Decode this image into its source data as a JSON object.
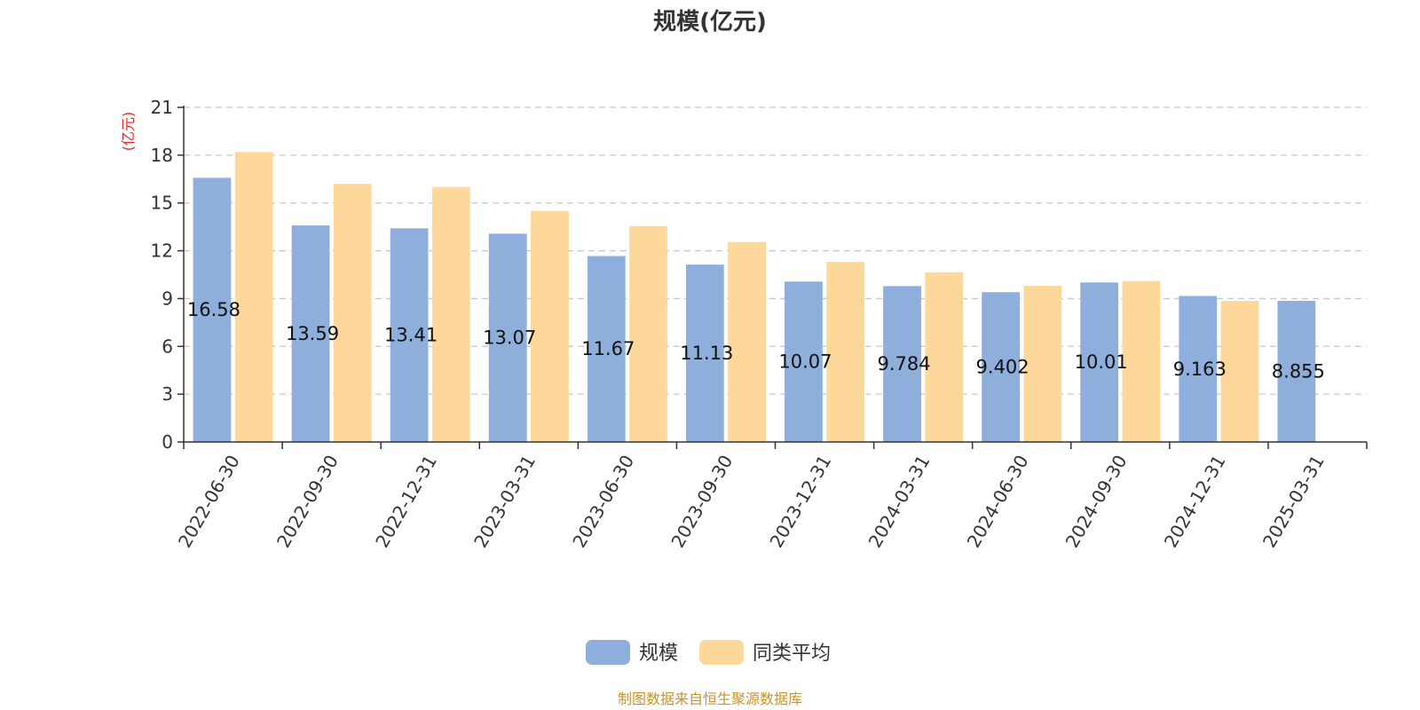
{
  "chart_data": {
    "type": "bar",
    "title": "规模(亿元)",
    "ylabel": "(亿元)",
    "ylim": [
      0,
      21
    ],
    "yticks": [
      0,
      3,
      6,
      9,
      12,
      15,
      18,
      21
    ],
    "grid": true,
    "categories": [
      "2022-06-30",
      "2022-09-30",
      "2022-12-31",
      "2023-03-31",
      "2023-06-30",
      "2023-09-30",
      "2023-12-31",
      "2024-03-31",
      "2024-06-30",
      "2024-09-30",
      "2024-12-31",
      "2025-03-31"
    ],
    "series": [
      {
        "name": "规模",
        "color": "#8eaedb",
        "values": [
          16.58,
          13.59,
          13.41,
          13.07,
          11.67,
          11.13,
          10.07,
          9.784,
          9.402,
          10.01,
          9.163,
          8.855
        ],
        "data_labels": [
          "16.58",
          "13.59",
          "13.41",
          "13.07",
          "11.67",
          "11.13",
          "10.07",
          "9.784",
          "9.402",
          "10.01",
          "9.163",
          "8.855"
        ]
      },
      {
        "name": "同类平均",
        "color": "#fdd89a",
        "values": [
          18.2,
          16.2,
          16.0,
          14.5,
          13.55,
          12.55,
          11.3,
          10.65,
          9.8,
          10.1,
          8.85,
          null
        ]
      }
    ],
    "legend_position": "bottom"
  },
  "source": "制图数据来自恒生聚源数据库"
}
